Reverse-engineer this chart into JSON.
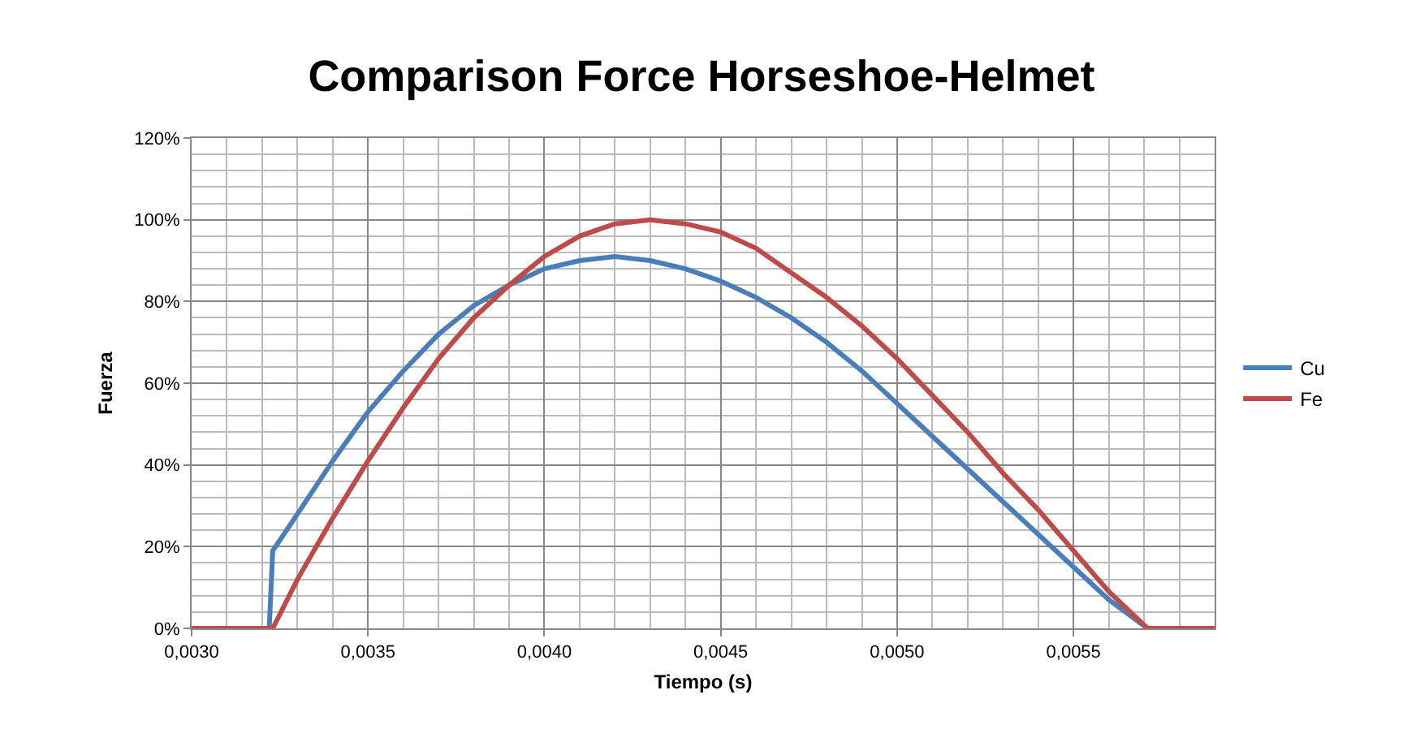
{
  "chart_data": {
    "type": "line",
    "title": "Comparison Force Horseshoe-Helmet",
    "xlabel": "Tiempo (s)",
    "ylabel": "Fuerza",
    "xlim": [
      0.003,
      0.0059
    ],
    "xticks": [
      {
        "value": 0.003,
        "label": "0,0030"
      },
      {
        "value": 0.0035,
        "label": "0,0035"
      },
      {
        "value": 0.004,
        "label": "0,0040"
      },
      {
        "value": 0.0045,
        "label": "0,0045"
      },
      {
        "value": 0.005,
        "label": "0,0050"
      },
      {
        "value": 0.0055,
        "label": "0,0055"
      }
    ],
    "ylim": [
      0,
      120
    ],
    "yticks": [
      {
        "value": 0,
        "label": "0%"
      },
      {
        "value": 20,
        "label": "20%"
      },
      {
        "value": 40,
        "label": "40%"
      },
      {
        "value": 60,
        "label": "60%"
      },
      {
        "value": 80,
        "label": "80%"
      },
      {
        "value": 100,
        "label": "100%"
      },
      {
        "value": 120,
        "label": "120%"
      }
    ],
    "grid": true,
    "legend": "right",
    "marker": "none",
    "line_style": "solid",
    "series": [
      {
        "name": "Cu",
        "color": "#4a7ebb",
        "x": [
          0.003,
          0.00322,
          0.00323,
          0.0033,
          0.0034,
          0.0035,
          0.0036,
          0.0037,
          0.0038,
          0.0039,
          0.004,
          0.0041,
          0.0042,
          0.0043,
          0.0044,
          0.0045,
          0.0046,
          0.0047,
          0.0048,
          0.0049,
          0.005,
          0.0051,
          0.0052,
          0.0053,
          0.0054,
          0.0055,
          0.0056,
          0.00571,
          0.0059
        ],
        "values": [
          0,
          0,
          19,
          28,
          41,
          53,
          63,
          72,
          79,
          84,
          88,
          90,
          91,
          90,
          88,
          85,
          81,
          76,
          70,
          63,
          55,
          47,
          39,
          31,
          23,
          15,
          7,
          0,
          0
        ]
      },
      {
        "name": "Fe",
        "color": "#be4b48",
        "x": [
          0.003,
          0.00323,
          0.0033,
          0.0034,
          0.0035,
          0.0036,
          0.0037,
          0.0038,
          0.0039,
          0.004,
          0.0041,
          0.0042,
          0.0043,
          0.0044,
          0.0045,
          0.0046,
          0.0047,
          0.0048,
          0.0049,
          0.005,
          0.0051,
          0.0052,
          0.0053,
          0.0054,
          0.0055,
          0.0056,
          0.00571,
          0.0059
        ],
        "values": [
          0,
          0,
          12,
          27,
          41,
          54,
          66,
          76,
          84,
          91,
          96,
          99,
          100,
          99,
          97,
          93,
          87,
          81,
          74,
          66,
          57,
          48,
          38,
          29,
          19,
          9,
          0,
          0
        ]
      }
    ]
  }
}
